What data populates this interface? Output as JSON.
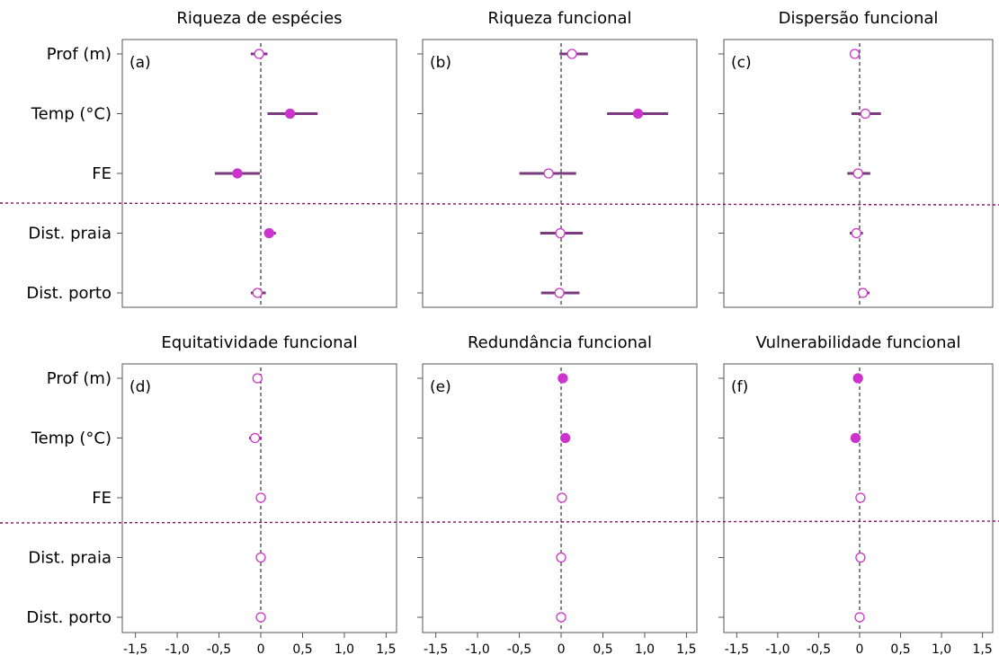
{
  "colors": {
    "significant": "#cc33cc",
    "open_marker_stroke": "#cc33cc",
    "whisker": "#7a3b7e",
    "separator": "#7a1a5e",
    "zero_line": "#333333",
    "frame": "#555555"
  },
  "chart_data": [
    {
      "type": "scatter",
      "style": "coefficient plot with confidence intervals",
      "panel_label": "(a)",
      "title": "Riqueza de espécies",
      "categories": [
        "Prof (m)",
        "Temp (°C)",
        "FE",
        "Dist. praia",
        "Dist. porto"
      ],
      "estimates": [
        -0.02,
        0.35,
        -0.28,
        0.1,
        -0.04
      ],
      "lower": [
        -0.12,
        0.08,
        -0.55,
        0.04,
        -0.12
      ],
      "upper": [
        0.08,
        0.68,
        -0.01,
        0.18,
        0.06
      ],
      "significant": [
        false,
        true,
        true,
        true,
        false
      ],
      "xlim": [
        -1.6,
        1.6
      ],
      "xticks": [
        "-1,5",
        "-1,0",
        "-0,5",
        "0",
        "0,5",
        "1,0",
        "1,5"
      ]
    },
    {
      "type": "scatter",
      "style": "coefficient plot with confidence intervals",
      "panel_label": "(b)",
      "title": "Riqueza funcional",
      "categories": [
        "Prof (m)",
        "Temp (°C)",
        "FE",
        "Dist. praia",
        "Dist. porto"
      ],
      "estimates": [
        0.13,
        0.92,
        -0.15,
        -0.01,
        -0.02
      ],
      "lower": [
        -0.02,
        0.55,
        -0.5,
        -0.25,
        -0.24
      ],
      "upper": [
        0.32,
        1.28,
        0.18,
        0.26,
        0.22
      ],
      "significant": [
        false,
        true,
        false,
        false,
        false
      ],
      "xlim": [
        -1.6,
        1.6
      ],
      "xticks": [
        "-1,5",
        "-1,0",
        "-0,5",
        "0",
        "0,5",
        "1,0",
        "1,5"
      ]
    },
    {
      "type": "scatter",
      "style": "coefficient plot with confidence intervals",
      "panel_label": "(c)",
      "title": "Dispersão funcional",
      "categories": [
        "Prof (m)",
        "Temp (°C)",
        "FE",
        "Dist. praia",
        "Dist. porto"
      ],
      "estimates": [
        -0.06,
        0.07,
        -0.02,
        -0.04,
        0.04
      ],
      "lower": [
        -0.12,
        -0.1,
        -0.15,
        -0.12,
        -0.02
      ],
      "upper": [
        0.0,
        0.26,
        0.13,
        0.04,
        0.12
      ],
      "significant": [
        false,
        false,
        false,
        false,
        false
      ],
      "xlim": [
        -1.6,
        1.6
      ],
      "xticks": [
        "-1,5",
        "-1,0",
        "-0,5",
        "0",
        "0,5",
        "1,0",
        "1,5"
      ]
    },
    {
      "type": "scatter",
      "style": "coefficient plot with confidence intervals",
      "panel_label": "(d)",
      "title": "Equitatividade funcional",
      "categories": [
        "Prof (m)",
        "Temp (°C)",
        "FE",
        "Dist. praia",
        "Dist. porto"
      ],
      "estimates": [
        -0.04,
        -0.07,
        0.0,
        0.0,
        0.0
      ],
      "lower": [
        -0.06,
        -0.14,
        -0.04,
        -0.02,
        -0.02
      ],
      "upper": [
        -0.02,
        0.01,
        0.06,
        0.02,
        0.02
      ],
      "significant": [
        false,
        false,
        false,
        false,
        false
      ],
      "xlim": [
        -1.6,
        1.6
      ],
      "xticks": [
        "-1,5",
        "-1,0",
        "-0,5",
        "0",
        "0,5",
        "1,0",
        "1,5"
      ]
    },
    {
      "type": "scatter",
      "style": "coefficient plot with confidence intervals",
      "panel_label": "(e)",
      "title": "Redundância funcional",
      "categories": [
        "Prof (m)",
        "Temp (°C)",
        "FE",
        "Dist. praia",
        "Dist. porto"
      ],
      "estimates": [
        0.02,
        0.05,
        0.01,
        0.0,
        0.0
      ],
      "lower": [
        0.01,
        0.03,
        0.0,
        -0.01,
        -0.01
      ],
      "upper": [
        0.03,
        0.07,
        0.02,
        0.01,
        0.01
      ],
      "significant": [
        true,
        true,
        false,
        false,
        false
      ],
      "xlim": [
        -1.6,
        1.6
      ],
      "xticks": [
        "-1,5",
        "-1,0",
        "-0,5",
        "0",
        "0,5",
        "1,0",
        "1,5"
      ]
    },
    {
      "type": "scatter",
      "style": "coefficient plot with confidence intervals",
      "panel_label": "(f)",
      "title": "Vulnerabilidade funcional",
      "categories": [
        "Prof (m)",
        "Temp (°C)",
        "FE",
        "Dist. praia",
        "Dist. porto"
      ],
      "estimates": [
        -0.02,
        -0.05,
        0.01,
        0.01,
        0.0
      ],
      "lower": [
        -0.03,
        -0.06,
        0.0,
        0.0,
        -0.01
      ],
      "upper": [
        -0.01,
        -0.04,
        0.02,
        0.02,
        0.01
      ],
      "significant": [
        true,
        true,
        false,
        false,
        false
      ],
      "xlim": [
        -1.6,
        1.6
      ],
      "xticks": [
        "-1,5",
        "-1,0",
        "-0,5",
        "0",
        "0,5",
        "1,0",
        "1,5"
      ]
    }
  ]
}
